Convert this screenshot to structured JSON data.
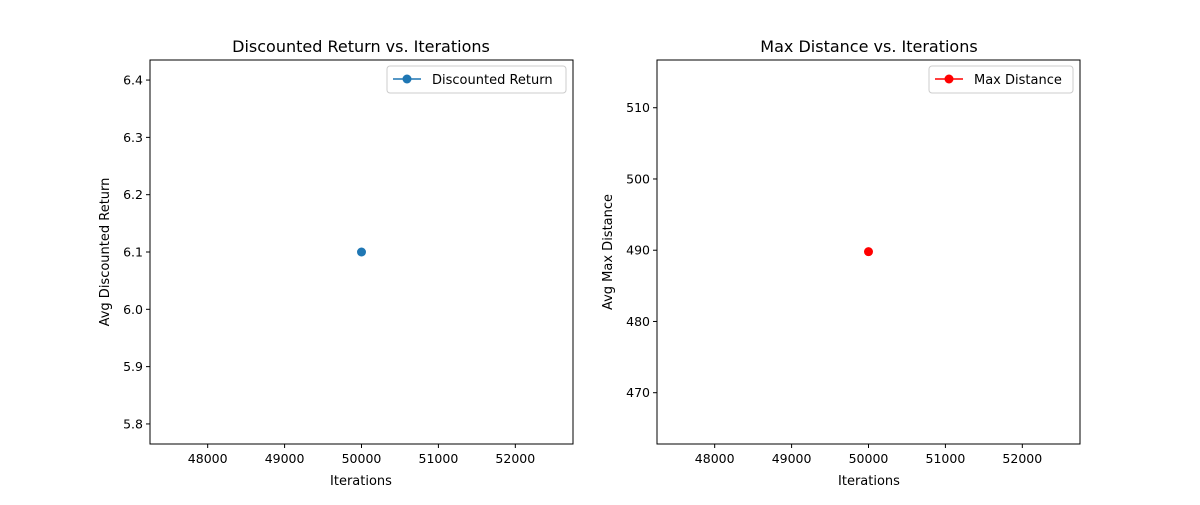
{
  "chart_data": [
    {
      "type": "line",
      "title": "Discounted Return vs. Iterations",
      "xlabel": "Iterations",
      "ylabel": "Avg Discounted Return",
      "xlim": [
        47250,
        52750
      ],
      "ylim": [
        5.765,
        6.435
      ],
      "xticks": [
        48000,
        49000,
        50000,
        51000,
        52000
      ],
      "yticks": [
        5.8,
        5.9,
        6.0,
        6.1,
        6.2,
        6.3,
        6.4
      ],
      "ytick_labels": [
        "5.8",
        "5.9",
        "6.0",
        "6.1",
        "6.2",
        "6.3",
        "6.4"
      ],
      "series": [
        {
          "name": "Discounted Return",
          "color": "#1f77b4",
          "x": [
            50000
          ],
          "y": [
            6.1
          ]
        }
      ],
      "legend": "top-right",
      "grid": false
    },
    {
      "type": "line",
      "title": "Max Distance vs. Iterations",
      "xlabel": "Iterations",
      "ylabel": "Avg Max Distance",
      "xlim": [
        47250,
        52750
      ],
      "ylim": [
        462.8,
        516.7
      ],
      "xticks": [
        48000,
        49000,
        50000,
        51000,
        52000
      ],
      "yticks": [
        470,
        480,
        490,
        500,
        510
      ],
      "ytick_labels": [
        "470",
        "480",
        "490",
        "500",
        "510"
      ],
      "series": [
        {
          "name": "Max Distance",
          "color": "#ff0000",
          "x": [
            50000
          ],
          "y": [
            489.8
          ]
        }
      ],
      "legend": "top-right",
      "grid": false
    }
  ]
}
